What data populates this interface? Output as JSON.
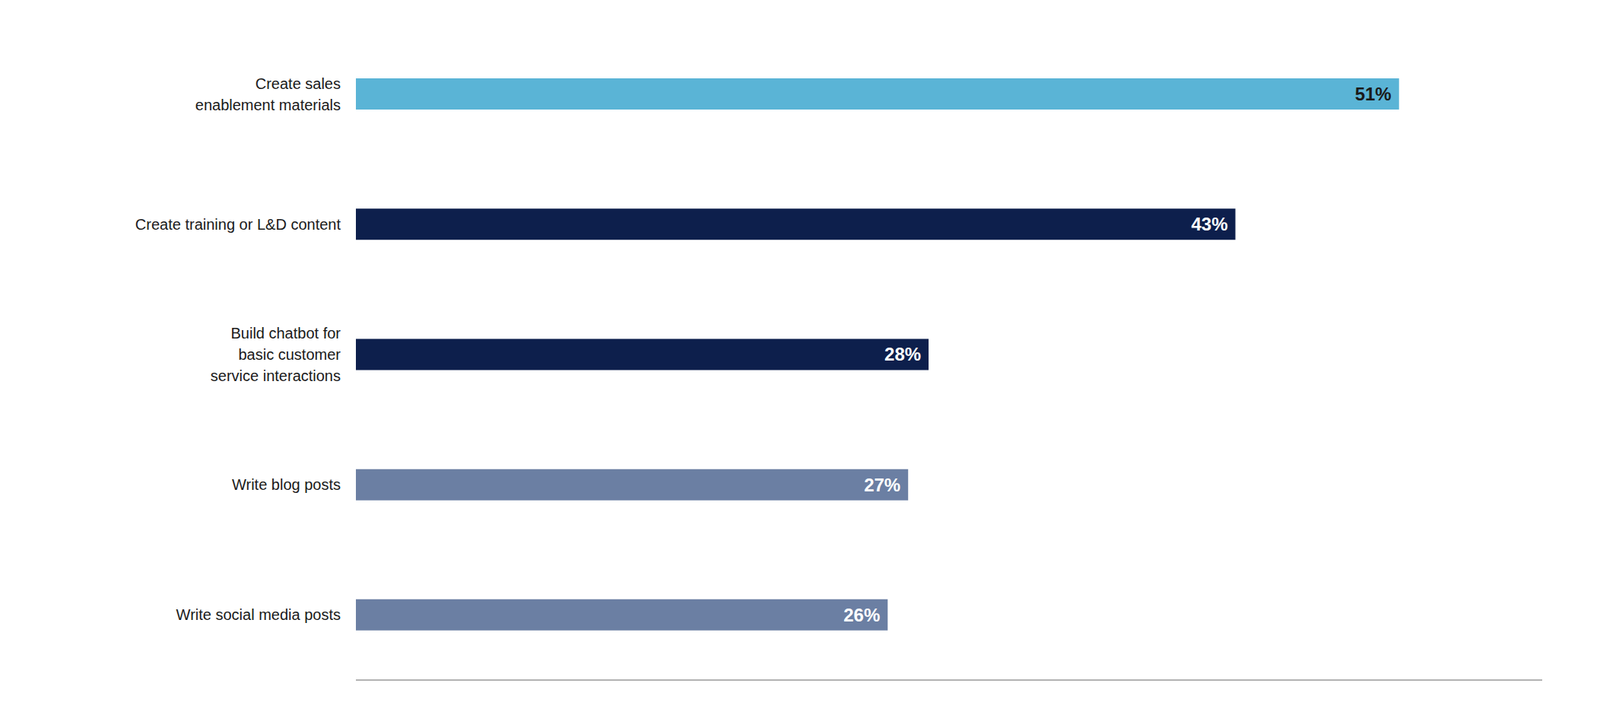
{
  "chart_data": {
    "type": "bar",
    "orientation": "horizontal",
    "categories": [
      "Write social media posts",
      "Write blog posts",
      "Build chatbot for\nbasic customer\nservice interactions",
      "Create training or L&D content",
      "Create sales\nenablement materials"
    ],
    "values": [
      26,
      27,
      28,
      43,
      51
    ],
    "value_labels": [
      "26%",
      "27%",
      "28%",
      "43%",
      "51%"
    ],
    "data_labels": true,
    "colors": [
      "#6b7fa3",
      "#6b7fa3",
      "#0d1f4c",
      "#0d1f4c",
      "#5ab4d6"
    ],
    "xlim": [
      0,
      58
    ],
    "tick_labels": "y",
    "grid": false
  }
}
